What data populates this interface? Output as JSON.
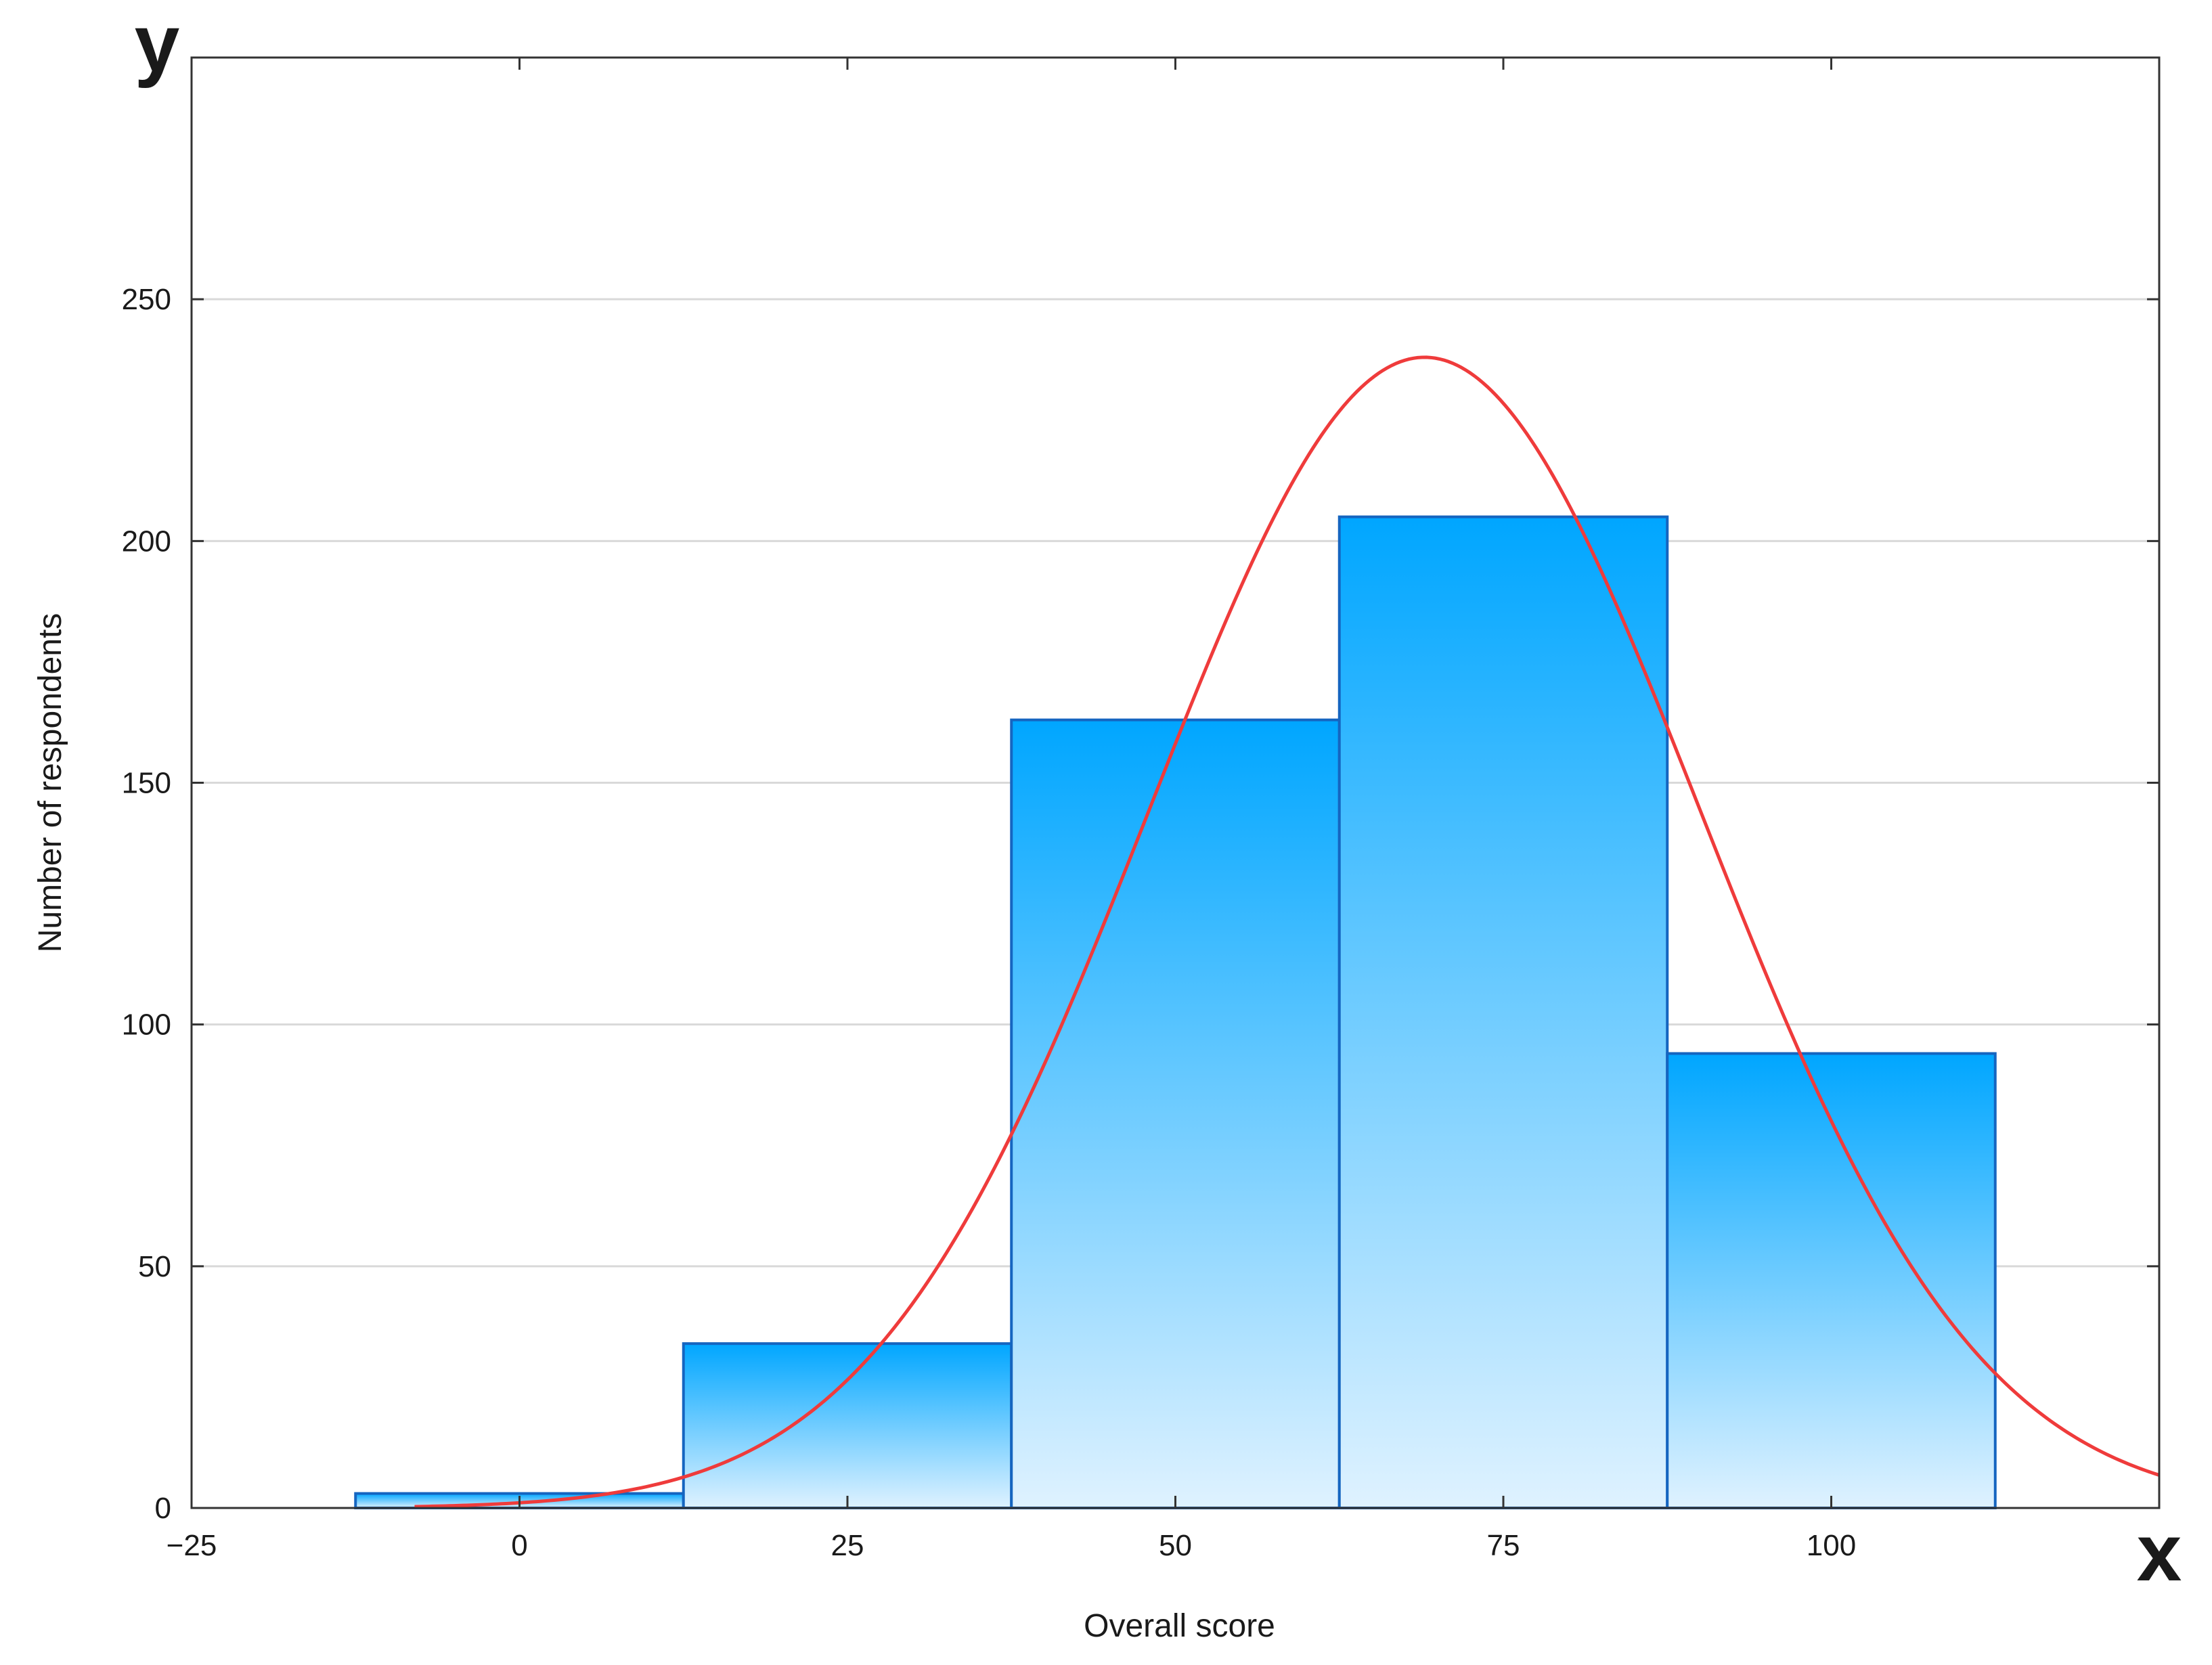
{
  "chart_data": {
    "type": "bar",
    "subtype": "histogram-with-normal-curve",
    "title": "",
    "xlabel": "Overall score",
    "ylabel": "Number of respondents",
    "corner_labels": {
      "x": "x",
      "y": "y"
    },
    "xlim": [
      -25,
      125
    ],
    "ylim": [
      0,
      300
    ],
    "x_ticks": [
      -25,
      0,
      25,
      50,
      75,
      100
    ],
    "x_tick_labels": [
      "−25",
      "0",
      "25",
      "50",
      "75",
      "100"
    ],
    "y_ticks": [
      0,
      50,
      100,
      150,
      200,
      250
    ],
    "y_tick_labels": [
      "0",
      "50",
      "100",
      "150",
      "200",
      "250"
    ],
    "grid": "horizontal",
    "bins": [
      {
        "start": -12.5,
        "end": 12.5,
        "count": 3
      },
      {
        "start": 12.5,
        "end": 37.5,
        "count": 34
      },
      {
        "start": 37.5,
        "end": 62.5,
        "count": 163
      },
      {
        "start": 62.5,
        "end": 87.5,
        "count": 205
      },
      {
        "start": 87.5,
        "end": 112.5,
        "count": 94
      }
    ],
    "normal_curve": {
      "mean": 69,
      "sd": 21,
      "peak": 238,
      "x_start": -8,
      "x_end": 125
    },
    "colors": {
      "bar_top": "#00a6ff",
      "bar_bottom": "#dff2ff",
      "bar_edge": "#1565c0",
      "curve": "#ef3b3b",
      "grid": "#d9d9d9",
      "frame": "#333333"
    }
  }
}
